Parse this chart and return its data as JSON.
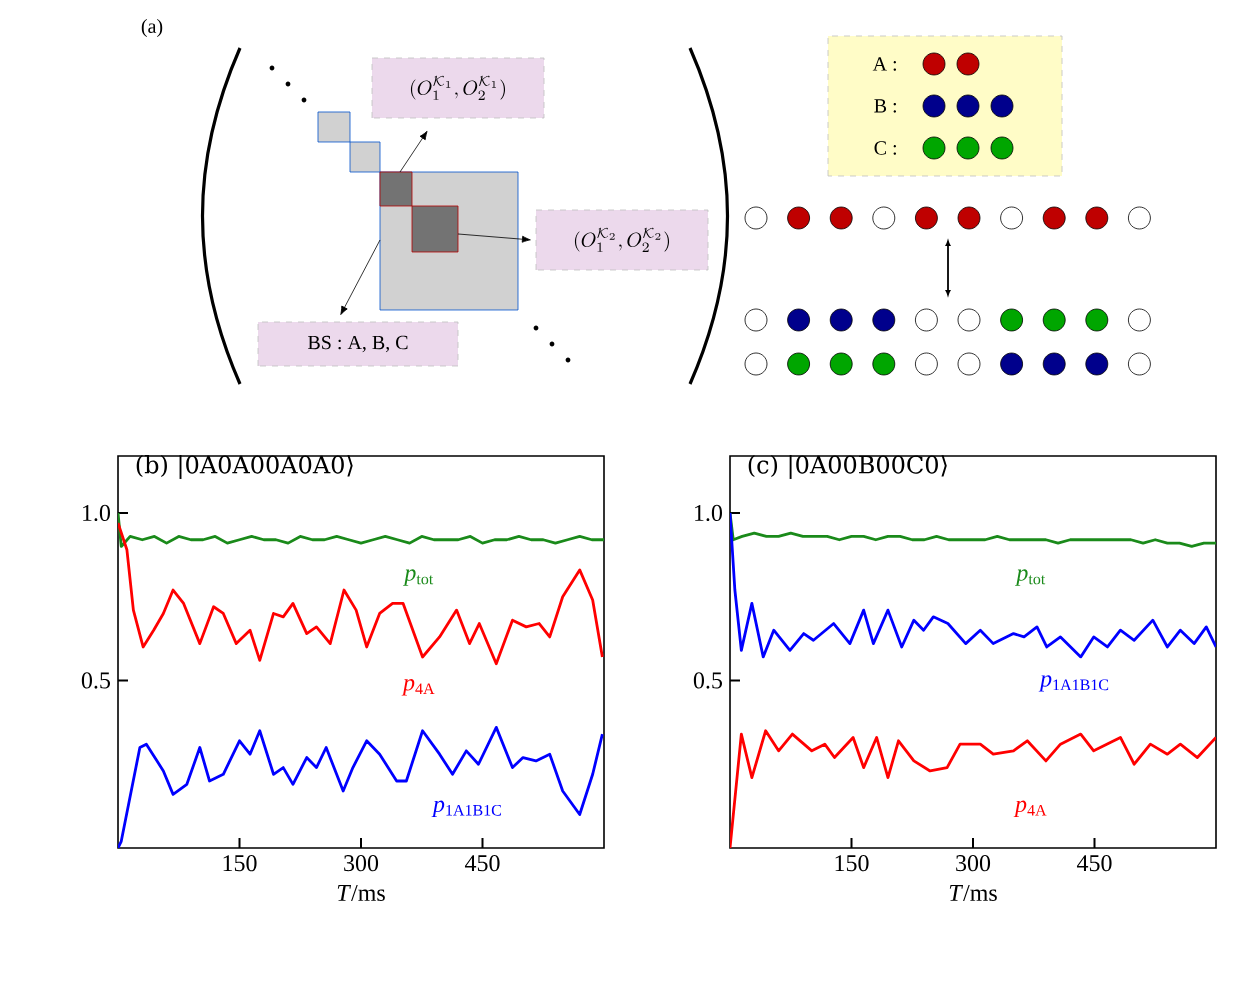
{
  "chart_data": [
    {
      "type": "other",
      "title": "(a)",
      "annotations": [
        "(O_1^{\\mathcal{K}_1}, O_2^{\\mathcal{K}_1})",
        "(O_1^{\\mathcal{K}_2}, O_2^{\\mathcal{K}_2})",
        "BS : A, B, C",
        "A :",
        "B :",
        "C :"
      ]
    },
    {
      "type": "line",
      "title": "(b) |0A0A00A0A0⟩",
      "xlabel": "*T*/ms",
      "xlim": [
        0,
        600
      ],
      "ylim": [
        0,
        1.17
      ],
      "xticks": [
        150,
        300,
        450
      ],
      "yticks": [
        0.5,
        {
          "value": 1.0,
          "label": "1.0"
        }
      ],
      "series": [
        {
          "name": "*p*$_{tot}$",
          "color": "#1a8a1a",
          "x": [
            0,
            4,
            15,
            30,
            45,
            60,
            75,
            90,
            105,
            120,
            135,
            150,
            165,
            180,
            195,
            210,
            225,
            240,
            255,
            270,
            285,
            300,
            315,
            330,
            345,
            360,
            375,
            390,
            405,
            420,
            435,
            450,
            465,
            480,
            495,
            510,
            525,
            540,
            555,
            570,
            585,
            600
          ],
          "values": [
            1.0,
            0.9,
            0.93,
            0.92,
            0.93,
            0.91,
            0.93,
            0.92,
            0.92,
            0.93,
            0.91,
            0.92,
            0.93,
            0.92,
            0.92,
            0.91,
            0.93,
            0.92,
            0.92,
            0.93,
            0.92,
            0.91,
            0.92,
            0.93,
            0.92,
            0.91,
            0.93,
            0.92,
            0.92,
            0.92,
            0.93,
            0.91,
            0.92,
            0.92,
            0.93,
            0.92,
            0.92,
            0.91,
            0.92,
            0.93,
            0.92,
            0.92
          ]
        },
        {
          "name": "*p*$_{4A}$",
          "color": "#ff0000",
          "x": [
            0,
            11,
            19,
            31,
            44,
            56,
            68,
            81,
            101,
            118,
            130,
            146,
            163,
            175,
            192,
            204,
            216,
            233,
            245,
            262,
            279,
            294,
            307,
            323,
            339,
            352,
            376,
            397,
            418,
            434,
            446,
            467,
            487,
            504,
            520,
            533,
            549,
            570,
            586,
            598
          ],
          "values": [
            0.97,
            0.89,
            0.71,
            0.6,
            0.65,
            0.7,
            0.77,
            0.73,
            0.61,
            0.72,
            0.7,
            0.61,
            0.65,
            0.56,
            0.7,
            0.69,
            0.73,
            0.64,
            0.66,
            0.61,
            0.77,
            0.71,
            0.6,
            0.7,
            0.73,
            0.73,
            0.57,
            0.63,
            0.71,
            0.61,
            0.67,
            0.55,
            0.68,
            0.66,
            0.67,
            0.63,
            0.75,
            0.83,
            0.74,
            0.57
          ]
        },
        {
          "name": "*p*$_{1A1B1C}$",
          "color": "#0000ff",
          "x": [
            0,
            4,
            27,
            35,
            56,
            68,
            85,
            101,
            113,
            130,
            150,
            163,
            175,
            192,
            204,
            216,
            233,
            245,
            257,
            278,
            290,
            307,
            323,
            344,
            356,
            376,
            397,
            413,
            430,
            445,
            467,
            487,
            500,
            516,
            533,
            549,
            570,
            586,
            598
          ],
          "values": [
            0.0,
            0.02,
            0.3,
            0.31,
            0.23,
            0.16,
            0.19,
            0.3,
            0.2,
            0.22,
            0.32,
            0.28,
            0.35,
            0.22,
            0.24,
            0.19,
            0.27,
            0.24,
            0.3,
            0.17,
            0.24,
            0.32,
            0.28,
            0.2,
            0.2,
            0.35,
            0.28,
            0.22,
            0.29,
            0.25,
            0.36,
            0.24,
            0.27,
            0.26,
            0.28,
            0.17,
            0.1,
            0.22,
            0.34
          ]
        }
      ]
    },
    {
      "type": "line",
      "title": "(c) |0A00B00C0⟩",
      "xlabel": "*T*/ms",
      "xlim": [
        0,
        600
      ],
      "ylim": [
        0,
        1.17
      ],
      "xticks": [
        150,
        300,
        450
      ],
      "yticks": [
        0.5,
        {
          "value": 1.0,
          "label": "1.0"
        }
      ],
      "series": [
        {
          "name": "*p*$_{tot}$",
          "color": "#1a8a1a",
          "x": [
            0,
            4,
            15,
            30,
            45,
            60,
            75,
            90,
            105,
            120,
            135,
            150,
            165,
            180,
            195,
            210,
            225,
            240,
            255,
            270,
            285,
            300,
            315,
            330,
            345,
            360,
            375,
            390,
            405,
            420,
            435,
            450,
            465,
            480,
            495,
            510,
            525,
            540,
            555,
            570,
            585,
            600
          ],
          "values": [
            1.0,
            0.92,
            0.93,
            0.94,
            0.93,
            0.93,
            0.94,
            0.93,
            0.93,
            0.93,
            0.92,
            0.93,
            0.93,
            0.92,
            0.93,
            0.93,
            0.92,
            0.92,
            0.93,
            0.92,
            0.92,
            0.92,
            0.92,
            0.93,
            0.92,
            0.92,
            0.92,
            0.92,
            0.91,
            0.92,
            0.92,
            0.92,
            0.92,
            0.92,
            0.92,
            0.91,
            0.92,
            0.91,
            0.91,
            0.9,
            0.91,
            0.91
          ]
        },
        {
          "name": "*p*$_{1A1B1C}$",
          "color": "#0000ff",
          "x": [
            0,
            6,
            14,
            27,
            41,
            54,
            74,
            91,
            103,
            128,
            148,
            165,
            177,
            195,
            212,
            227,
            239,
            251,
            269,
            291,
            309,
            325,
            350,
            363,
            379,
            391,
            408,
            433,
            449,
            466,
            482,
            499,
            522,
            540,
            556,
            573,
            588,
            600
          ],
          "values": [
            1.0,
            0.77,
            0.59,
            0.73,
            0.57,
            0.65,
            0.59,
            0.64,
            0.62,
            0.67,
            0.61,
            0.71,
            0.61,
            0.71,
            0.6,
            0.68,
            0.65,
            0.69,
            0.67,
            0.61,
            0.65,
            0.61,
            0.64,
            0.63,
            0.66,
            0.6,
            0.63,
            0.57,
            0.63,
            0.6,
            0.65,
            0.62,
            0.68,
            0.6,
            0.65,
            0.61,
            0.66,
            0.6
          ]
        },
        {
          "name": "*p*$_{4A}$",
          "color": "#ff0000",
          "x": [
            0,
            14,
            27,
            44,
            60,
            77,
            101,
            117,
            129,
            152,
            165,
            181,
            195,
            208,
            227,
            247,
            268,
            284,
            309,
            325,
            350,
            367,
            390,
            408,
            433,
            449,
            482,
            499,
            519,
            540,
            556,
            577,
            600
          ],
          "values": [
            0.0,
            0.34,
            0.21,
            0.35,
            0.29,
            0.34,
            0.29,
            0.31,
            0.27,
            0.33,
            0.24,
            0.33,
            0.21,
            0.32,
            0.26,
            0.23,
            0.24,
            0.31,
            0.31,
            0.28,
            0.29,
            0.32,
            0.26,
            0.31,
            0.34,
            0.29,
            0.33,
            0.25,
            0.31,
            0.28,
            0.31,
            0.27,
            0.33
          ]
        }
      ]
    }
  ]
}
